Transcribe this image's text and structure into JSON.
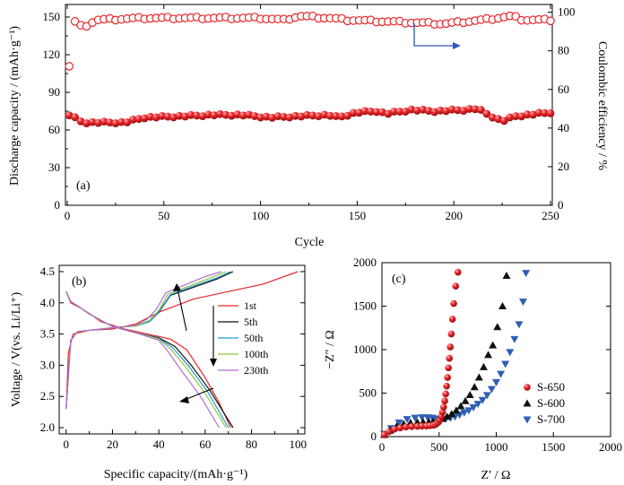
{
  "colors": {
    "red": "#e8262a",
    "black": "#111111",
    "blue": "#2f5fb3",
    "arrow_blue": "#2d55c4",
    "c50": "#1f9bd0",
    "c100": "#8cc63f",
    "c230": "#b46fd0"
  },
  "chart_data": [
    {
      "id": "a",
      "type": "scatter",
      "panel_label": "(a)",
      "xlabel": "Cycle",
      "ylabel": "Discharge capacity / (mAh·g⁻¹)",
      "y2label": "Coulombic efficiency / %",
      "xlim": [
        0,
        250
      ],
      "ylim": [
        0,
        160
      ],
      "y2lim": [
        0,
        104
      ],
      "xticks": [
        0,
        50,
        100,
        150,
        200,
        250
      ],
      "yticks": [
        0,
        30,
        60,
        90,
        120,
        150
      ],
      "y2ticks": [
        0,
        20,
        40,
        60,
        80,
        100
      ],
      "capacity_key": [
        [
          1,
          72
        ],
        [
          8,
          66
        ],
        [
          20,
          66
        ],
        [
          30,
          66
        ],
        [
          40,
          70
        ],
        [
          60,
          71
        ],
        [
          75,
          72
        ],
        [
          90,
          72
        ],
        [
          105,
          70
        ],
        [
          120,
          71
        ],
        [
          135,
          72
        ],
        [
          140,
          70
        ],
        [
          150,
          74
        ],
        [
          160,
          75
        ],
        [
          165,
          73
        ],
        [
          178,
          76
        ],
        [
          190,
          75
        ],
        [
          205,
          76
        ],
        [
          212,
          77
        ],
        [
          218,
          72
        ],
        [
          225,
          67
        ],
        [
          232,
          71
        ],
        [
          250,
          74
        ]
      ],
      "efficiency_key": [
        [
          1,
          72
        ],
        [
          4,
          95
        ],
        [
          8,
          92
        ],
        [
          15,
          96
        ],
        [
          40,
          97
        ],
        [
          100,
          97
        ],
        [
          112,
          96
        ],
        [
          120,
          98
        ],
        [
          135,
          97
        ],
        [
          145,
          96
        ],
        [
          170,
          95
        ],
        [
          195,
          94
        ],
        [
          215,
          96
        ],
        [
          230,
          98
        ],
        [
          236,
          96
        ],
        [
          250,
          96
        ]
      ]
    },
    {
      "id": "b",
      "type": "line",
      "panel_label": "(b)",
      "xlabel": "Specific capacity/(mAh·g⁻¹)",
      "ylabel": "Voltage / V(vs. Li/Li⁺)",
      "xlim": [
        -3,
        103
      ],
      "ylim": [
        1.9,
        4.6
      ],
      "xticks": [
        0,
        20,
        40,
        60,
        80,
        100
      ],
      "yticks": [
        2.0,
        2.5,
        3.0,
        3.5,
        4.0,
        4.5
      ],
      "series": [
        {
          "name": "1st",
          "color": "#e8262a",
          "charge": [
            [
              0,
              2.3
            ],
            [
              1,
              3.2
            ],
            [
              3,
              3.5
            ],
            [
              10,
              3.56
            ],
            [
              20,
              3.58
            ],
            [
              30,
              3.66
            ],
            [
              40,
              3.85
            ],
            [
              55,
              4.06
            ],
            [
              70,
              4.18
            ],
            [
              85,
              4.3
            ],
            [
              100,
              4.5
            ]
          ],
          "discharge": [
            [
              0,
              4.18
            ],
            [
              2,
              4.0
            ],
            [
              6,
              3.92
            ],
            [
              10,
              3.83
            ],
            [
              15,
              3.7
            ],
            [
              25,
              3.58
            ],
            [
              35,
              3.5
            ],
            [
              45,
              3.42
            ],
            [
              52,
              3.25
            ],
            [
              60,
              2.8
            ],
            [
              66,
              2.4
            ],
            [
              71,
              2.0
            ]
          ]
        },
        {
          "name": "5th",
          "color": "#111111",
          "charge": [
            [
              0,
              2.3
            ],
            [
              2,
              3.4
            ],
            [
              5,
              3.54
            ],
            [
              20,
              3.6
            ],
            [
              30,
              3.63
            ],
            [
              36,
              3.7
            ],
            [
              40,
              3.85
            ],
            [
              45,
              4.12
            ],
            [
              55,
              4.25
            ],
            [
              65,
              4.38
            ],
            [
              72,
              4.5
            ]
          ],
          "discharge": [
            [
              0,
              4.18
            ],
            [
              2,
              4.02
            ],
            [
              5,
              3.95
            ],
            [
              10,
              3.82
            ],
            [
              20,
              3.62
            ],
            [
              30,
              3.52
            ],
            [
              40,
              3.44
            ],
            [
              47,
              3.3
            ],
            [
              54,
              3.0
            ],
            [
              62,
              2.6
            ],
            [
              72,
              2.0
            ]
          ]
        },
        {
          "name": "50th",
          "color": "#1f9bd0",
          "charge": [
            [
              0,
              2.3
            ],
            [
              2,
              3.4
            ],
            [
              5,
              3.54
            ],
            [
              20,
              3.6
            ],
            [
              30,
              3.63
            ],
            [
              36,
              3.7
            ],
            [
              40,
              3.86
            ],
            [
              45,
              4.13
            ],
            [
              55,
              4.27
            ],
            [
              65,
              4.4
            ],
            [
              71,
              4.5
            ]
          ],
          "discharge": [
            [
              0,
              4.18
            ],
            [
              2,
              4.02
            ],
            [
              5,
              3.95
            ],
            [
              10,
              3.82
            ],
            [
              20,
              3.62
            ],
            [
              30,
              3.52
            ],
            [
              40,
              3.43
            ],
            [
              46,
              3.28
            ],
            [
              53,
              2.98
            ],
            [
              61,
              2.58
            ],
            [
              70,
              2.0
            ]
          ]
        },
        {
          "name": "100th",
          "color": "#8cc63f",
          "charge": [
            [
              0,
              2.3
            ],
            [
              2,
              3.4
            ],
            [
              5,
              3.54
            ],
            [
              20,
              3.6
            ],
            [
              30,
              3.63
            ],
            [
              36,
              3.72
            ],
            [
              40,
              3.88
            ],
            [
              44,
              4.14
            ],
            [
              54,
              4.28
            ],
            [
              63,
              4.41
            ],
            [
              69,
              4.5
            ]
          ],
          "discharge": [
            [
              0,
              4.18
            ],
            [
              2,
              4.02
            ],
            [
              5,
              3.95
            ],
            [
              10,
              3.82
            ],
            [
              20,
              3.62
            ],
            [
              30,
              3.52
            ],
            [
              40,
              3.42
            ],
            [
              45,
              3.26
            ],
            [
              52,
              2.95
            ],
            [
              60,
              2.55
            ],
            [
              69,
              2.0
            ]
          ]
        },
        {
          "name": "230th",
          "color": "#b46fd0",
          "charge": [
            [
              0,
              2.3
            ],
            [
              2,
              3.4
            ],
            [
              5,
              3.54
            ],
            [
              20,
              3.6
            ],
            [
              30,
              3.64
            ],
            [
              35,
              3.74
            ],
            [
              39,
              3.9
            ],
            [
              43,
              4.16
            ],
            [
              52,
              4.3
            ],
            [
              60,
              4.42
            ],
            [
              67,
              4.5
            ]
          ],
          "discharge": [
            [
              0,
              4.18
            ],
            [
              2,
              4.02
            ],
            [
              5,
              3.95
            ],
            [
              10,
              3.82
            ],
            [
              20,
              3.62
            ],
            [
              30,
              3.52
            ],
            [
              40,
              3.4
            ],
            [
              44,
              3.22
            ],
            [
              50,
              2.9
            ],
            [
              58,
              2.5
            ],
            [
              66,
              2.0
            ]
          ]
        }
      ]
    },
    {
      "id": "c",
      "type": "scatter",
      "panel_label": "(c)",
      "xlabel": "Z′ / Ω",
      "ylabel": "−Z″ / Ω",
      "xlim": [
        0,
        2000
      ],
      "ylim": [
        0,
        2000
      ],
      "xticks": [
        0,
        500,
        1000,
        1500,
        2000
      ],
      "yticks": [
        0,
        500,
        1000,
        1500,
        2000
      ],
      "series": [
        {
          "name": "S-650",
          "color": "#e8262a",
          "marker": "circle",
          "points": [
            [
              20,
              20
            ],
            [
              60,
              55
            ],
            [
              110,
              85
            ],
            [
              160,
              100
            ],
            [
              210,
              110
            ],
            [
              260,
              115
            ],
            [
              310,
              118
            ],
            [
              350,
              120
            ],
            [
              390,
              122
            ],
            [
              420,
              125
            ],
            [
              450,
              130
            ],
            [
              470,
              140
            ],
            [
              490,
              160
            ],
            [
              505,
              190
            ],
            [
              518,
              230
            ],
            [
              530,
              280
            ],
            [
              540,
              340
            ],
            [
              550,
              410
            ],
            [
              558,
              490
            ],
            [
              566,
              580
            ],
            [
              574,
              680
            ],
            [
              582,
              790
            ],
            [
              590,
              900
            ],
            [
              598,
              1030
            ],
            [
              607,
              1180
            ],
            [
              617,
              1350
            ],
            [
              628,
              1530
            ],
            [
              645,
              1730
            ],
            [
              665,
              1890
            ]
          ]
        },
        {
          "name": "S-600",
          "color": "#111111",
          "marker": "triangle-up",
          "points": [
            [
              20,
              20
            ],
            [
              70,
              70
            ],
            [
              130,
              120
            ],
            [
              190,
              145
            ],
            [
              250,
              160
            ],
            [
              310,
              165
            ],
            [
              360,
              168
            ],
            [
              410,
              170
            ],
            [
              450,
              175
            ],
            [
              490,
              185
            ],
            [
              530,
              205
            ],
            [
              570,
              230
            ],
            [
              610,
              260
            ],
            [
              650,
              300
            ],
            [
              690,
              350
            ],
            [
              730,
              410
            ],
            [
              770,
              480
            ],
            [
              810,
              570
            ],
            [
              850,
              680
            ],
            [
              890,
              800
            ],
            [
              930,
              940
            ],
            [
              970,
              1050
            ],
            [
              1010,
              1260
            ],
            [
              1055,
              1500
            ],
            [
              1090,
              1850
            ]
          ]
        },
        {
          "name": "S-700",
          "color": "#2f5fb3",
          "marker": "triangle-down",
          "points": [
            [
              20,
              30
            ],
            [
              80,
              95
            ],
            [
              150,
              160
            ],
            [
              220,
              200
            ],
            [
              290,
              215
            ],
            [
              350,
              220
            ],
            [
              400,
              220
            ],
            [
              440,
              215
            ],
            [
              480,
              205
            ],
            [
              520,
              200
            ],
            [
              560,
              205
            ],
            [
              600,
              215
            ],
            [
              640,
              230
            ],
            [
              680,
              250
            ],
            [
              720,
              275
            ],
            [
              760,
              300
            ],
            [
              800,
              335
            ],
            [
              840,
              375
            ],
            [
              880,
              420
            ],
            [
              920,
              475
            ],
            [
              960,
              545
            ],
            [
              1000,
              625
            ],
            [
              1040,
              720
            ],
            [
              1080,
              835
            ],
            [
              1120,
              970
            ],
            [
              1160,
              1120
            ],
            [
              1200,
              1290
            ],
            [
              1235,
              1550
            ],
            [
              1260,
              1880
            ]
          ]
        }
      ]
    }
  ]
}
